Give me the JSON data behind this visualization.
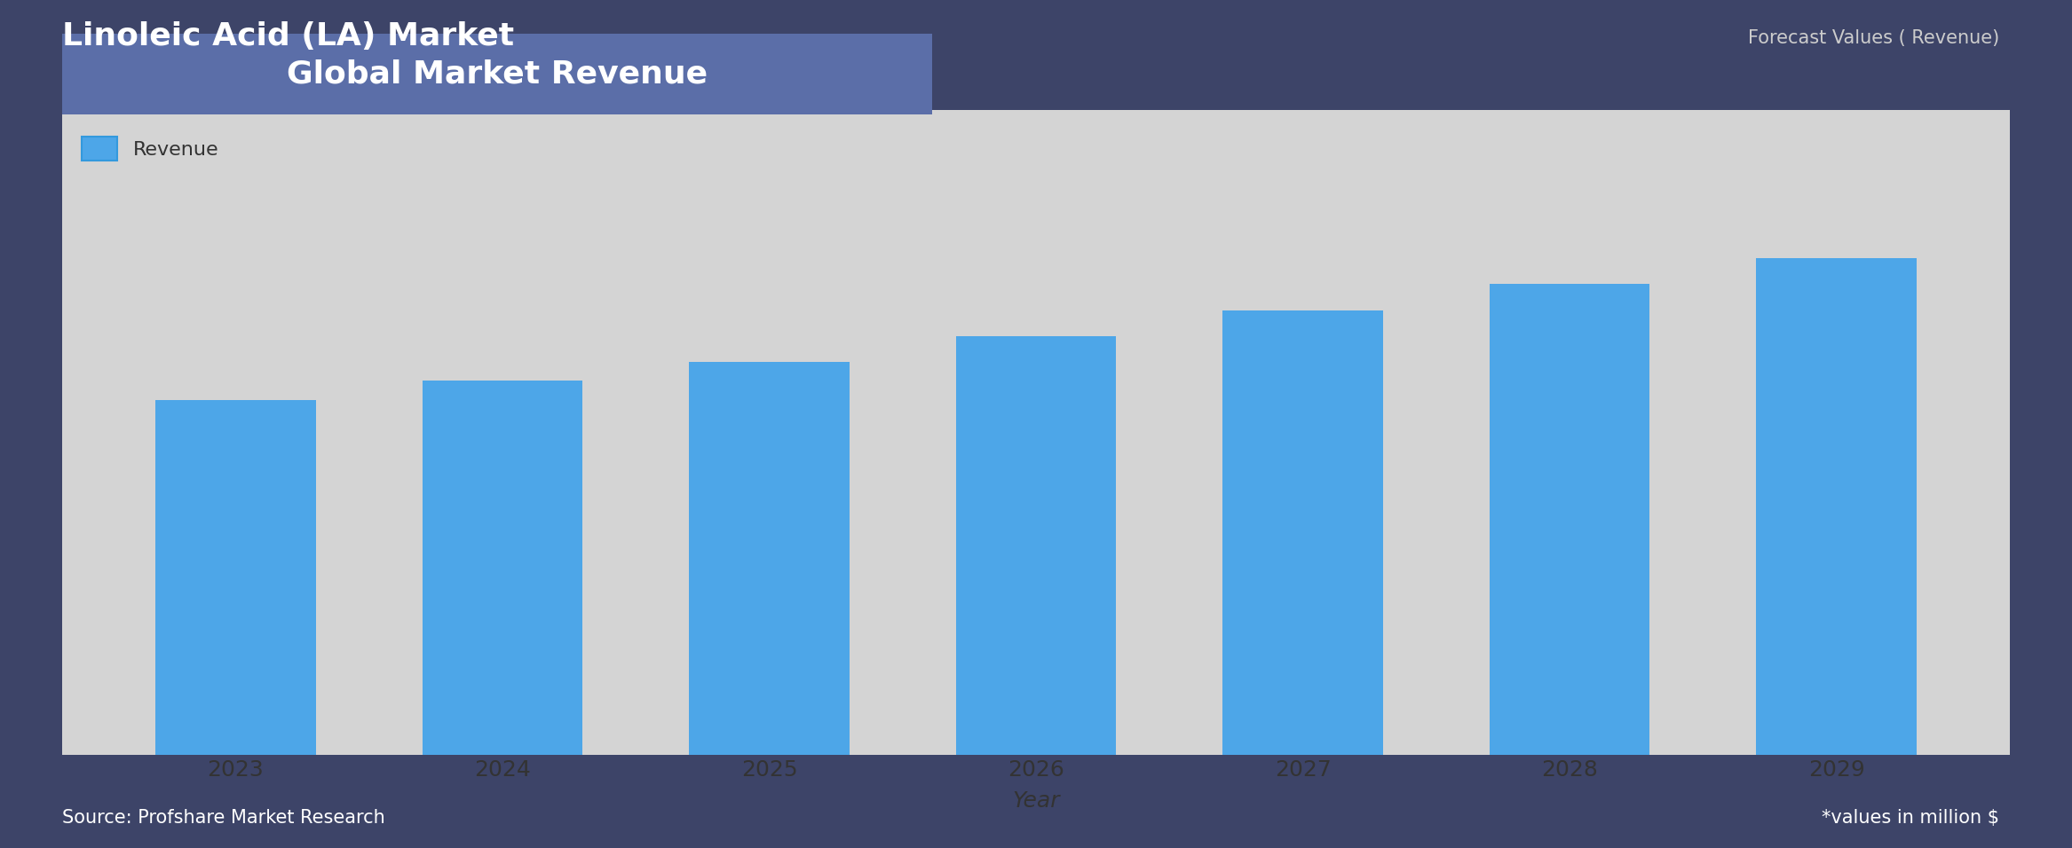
{
  "title": "Linoleic Acid (LA) Market",
  "subtitle": "Global Market Revenue",
  "forecast_label": "Forecast Values ( Revenue)",
  "legend_label": "Revenue",
  "xlabel": "Year",
  "source_text": "Source: Profshare Market Research",
  "note_text": "*values in million $",
  "years": [
    2023,
    2024,
    2025,
    2026,
    2027,
    2028,
    2029
  ],
  "values": [
    55,
    58,
    61,
    65,
    69,
    73,
    77
  ],
  "bar_color": "#4da6e8",
  "background_color": "#3d4468",
  "plot_bg_color": "#d4d4d4",
  "title_color": "#ffffff",
  "subtitle_bg_color": "#5b6ea8",
  "subtitle_text_color": "#ffffff",
  "tick_label_color": "#333333",
  "forecast_color": "#cccccc",
  "source_color": "#ffffff",
  "grid_color": "#555555",
  "ylim": [
    0,
    100
  ],
  "grid_step": 8,
  "title_fontsize": 26,
  "subtitle_fontsize": 26,
  "legend_fontsize": 16,
  "tick_fontsize": 18,
  "xlabel_fontsize": 18,
  "note_fontsize": 15,
  "source_fontsize": 15,
  "forecast_fontsize": 15
}
